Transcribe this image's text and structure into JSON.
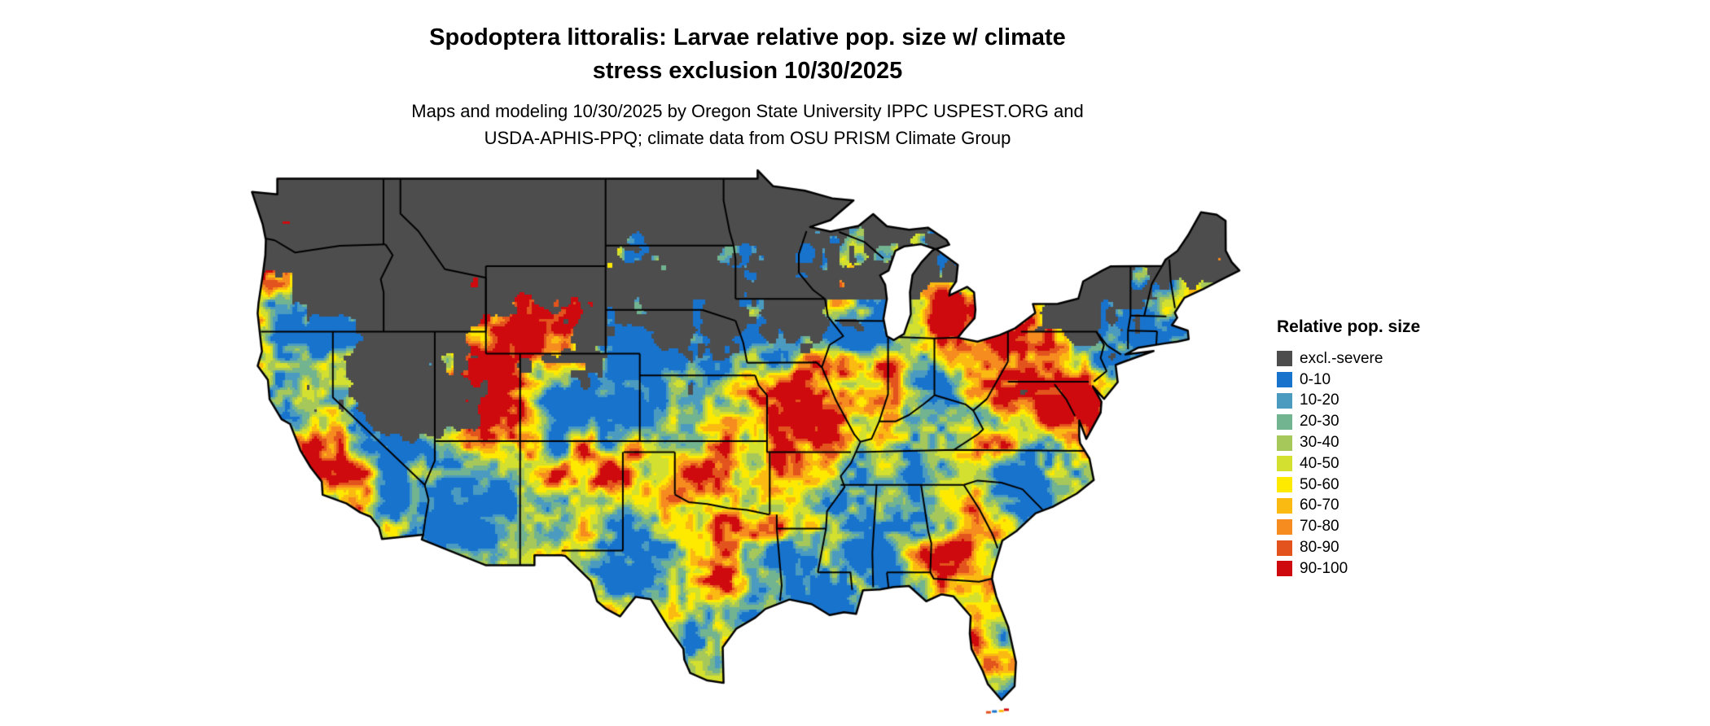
{
  "page": {
    "background": "#ffffff"
  },
  "title": {
    "line1": "Spodoptera littoralis: Larvae relative pop. size w/ climate",
    "line2": "stress exclusion 10/30/2025"
  },
  "subtitle": {
    "line1": "Maps and modeling 10/30/2025 by Oregon State University IPPC USPEST.ORG and",
    "line2": "USDA-APHIS-PPQ; climate data from OSU PRISM Climate Group"
  },
  "map": {
    "name": "contiguous-us-relative-population-raster",
    "region": "Contiguous United States",
    "outline_color": "#000000"
  },
  "legend": {
    "title": "Relative pop. size",
    "items": [
      {
        "label": "excl.-severe",
        "color": "#4d4d4d"
      },
      {
        "label": "0-10",
        "color": "#1873cd"
      },
      {
        "label": "10-20",
        "color": "#4b9bc1"
      },
      {
        "label": "20-30",
        "color": "#72b390"
      },
      {
        "label": "30-40",
        "color": "#a6c75a"
      },
      {
        "label": "40-50",
        "color": "#d3e02f"
      },
      {
        "label": "50-60",
        "color": "#fee900"
      },
      {
        "label": "60-70",
        "color": "#fbba12"
      },
      {
        "label": "70-80",
        "color": "#f68b1f"
      },
      {
        "label": "80-90",
        "color": "#e2531d"
      },
      {
        "label": "90-100",
        "color": "#cf0a0f"
      }
    ]
  }
}
